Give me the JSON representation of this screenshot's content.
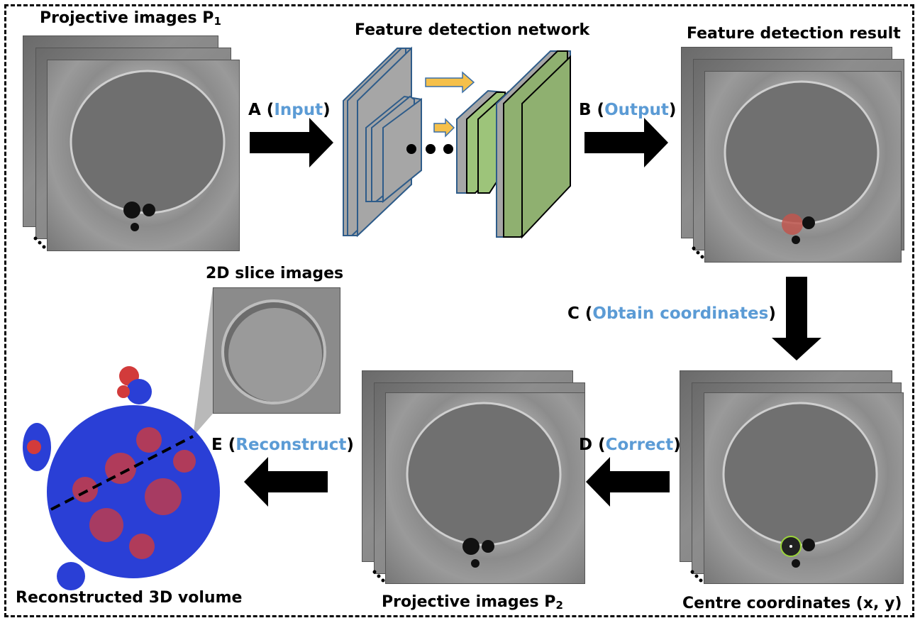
{
  "labels": {
    "proj1_main": "Projective images P",
    "proj1_sub": "1",
    "network": "Feature detection network",
    "result": "Feature detection result",
    "slice": "2D slice images",
    "recon_volume": "Reconstructed 3D volume",
    "proj2_main": "Projective images P",
    "proj2_sub": "2",
    "centre": "Centre coordinates (x, y)"
  },
  "steps": {
    "a_letter": "A (",
    "a_word": "Input",
    "a_close": ")",
    "b_letter": "B (",
    "b_word": "Output",
    "b_close": ")",
    "c_letter": "C (",
    "c_word": "Obtain coordinates",
    "c_close": ")",
    "d_letter": "D (",
    "d_word": "Correct",
    "d_close": ")",
    "e_letter": "E (",
    "e_word": "Reconstruct",
    "e_close": ")"
  },
  "colors": {
    "keyword": "#5b9bd5",
    "layer_blue_edge": "#2e5c8a",
    "layer_gray": "#a6a6a6",
    "layer_green": "#8fb070",
    "skip_arrow": "#f5c04a",
    "volume_blue": "#2a3fd6",
    "volume_red": "#d23b3b"
  }
}
